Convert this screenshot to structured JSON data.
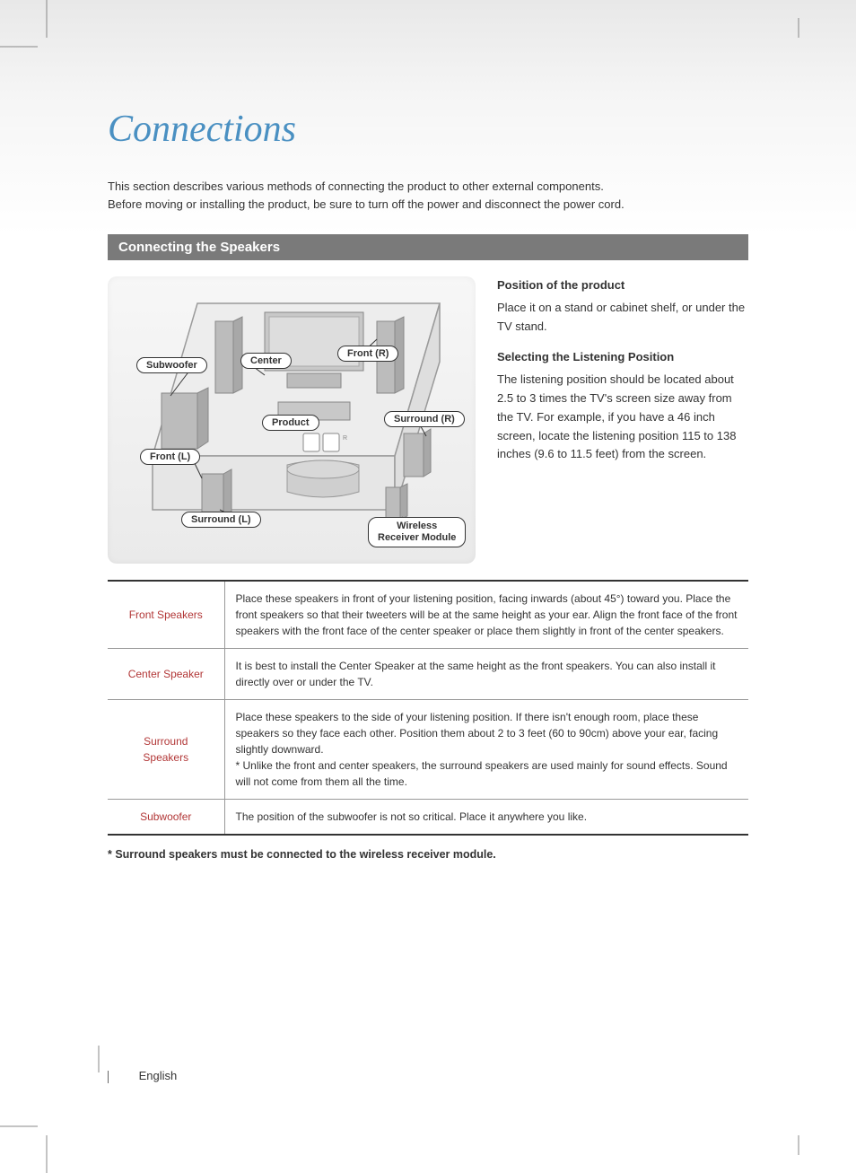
{
  "title": "Connections",
  "intro": {
    "line1": "This section describes various methods of connecting the product to other external components.",
    "line2": "Before moving or installing the product, be sure to turn off the power and disconnect the power cord."
  },
  "section_bar": "Connecting the Speakers",
  "diagram_labels": {
    "subwoofer": "Subwoofer",
    "center": "Center",
    "front_r": "Front (R)",
    "product": "Product",
    "surround_r": "Surround (R)",
    "front_l": "Front (L)",
    "surround_l": "Surround (L)",
    "wireless_line1": "Wireless",
    "wireless_line2": "Receiver Module"
  },
  "side": {
    "h1": "Position of the product",
    "p1": "Place it on a stand or cabinet shelf, or under the TV stand.",
    "h2": "Selecting the Listening Position",
    "p2": "The listening position should be located about 2.5 to 3 times the TV's screen size away from the TV. For example, if you have a 46 inch screen, locate the listening position 115 to 138 inches (9.6 to 11.5 feet) from the screen."
  },
  "table": {
    "rows": [
      {
        "label": "Front Speakers",
        "text": "Place these speakers in front of your listening position, facing inwards (about 45°) toward you. Place the front speakers so that their tweeters will be at the same height as your ear. Align the front face of the front speakers with the front face of the center speaker or place them slightly in front of the center speakers."
      },
      {
        "label": "Center Speaker",
        "text": "It is best to install the Center Speaker at the same height as the front speakers. You can also install it directly over or under the TV."
      },
      {
        "label": "Surround Speakers",
        "text": "Place these speakers to the side of your listening position. If there isn't enough room, place these speakers so they face each other. Position them about 2 to 3 feet (60 to 90cm) above your ear, facing slightly downward.\n* Unlike the front and center speakers, the surround speakers are used mainly for sound effects. Sound will not come from them all the time."
      },
      {
        "label": "Subwoofer",
        "text": "The position of the subwoofer is not so critical. Place it anywhere you like."
      }
    ]
  },
  "footnote": "* Surround speakers must be connected to the wireless receiver module.",
  "footer_lang": "English",
  "colors": {
    "title": "#4a90c2",
    "section_bar_bg": "#7a7a7a",
    "table_label": "#b23737",
    "page_bg_top": "#e8e8e8",
    "page_bg_bottom": "#ffffff",
    "diagram_bg": "#eaeaea"
  },
  "fonts": {
    "title_family": "Georgia, serif",
    "title_size_pt": 32,
    "body_family": "Arial, sans-serif",
    "body_size_pt": 10
  }
}
